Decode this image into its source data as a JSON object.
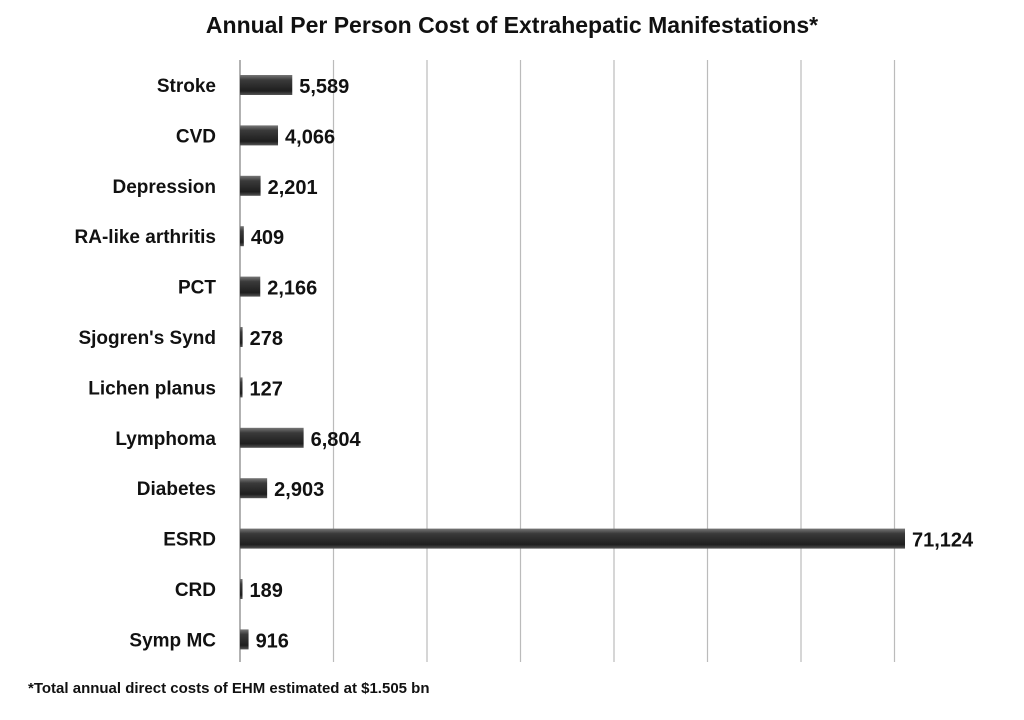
{
  "chart_data": {
    "type": "bar",
    "orientation": "horizontal",
    "title": "Annual Per Person Cost of Extrahepatic Manifestations*",
    "categories": [
      "Stroke",
      "CVD",
      "Depression",
      "RA-like arthritis",
      "PCT",
      "Sjogren's Synd",
      "Lichen planus",
      "Lymphoma",
      "Diabetes",
      "ESRD",
      "CRD",
      "Symp MC"
    ],
    "values": [
      5589,
      4066,
      2201,
      409,
      2166,
      278,
      127,
      6804,
      2903,
      71124,
      189,
      916
    ],
    "value_labels": [
      "5,589",
      "4,066",
      "2,201",
      "409",
      "2,166",
      "278",
      "127",
      "6,804",
      "2,903",
      "71,124",
      "189",
      "916"
    ],
    "xlim": [
      0,
      80000
    ],
    "grid_step": 10000,
    "grid": true,
    "xlabel": "",
    "ylabel": "",
    "bar_color": "#2e2e2e",
    "footnote": "*Total annual direct costs of EHM estimated at $1.505 bn"
  }
}
